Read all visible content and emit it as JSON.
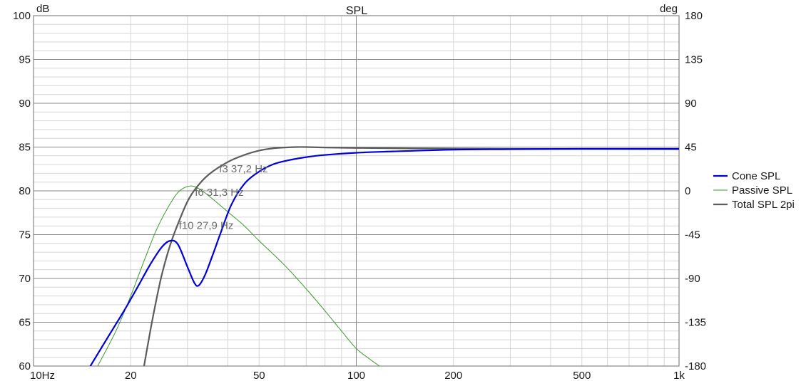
{
  "chart_data": {
    "type": "line",
    "title": "SPL",
    "ylabel_left": "dB",
    "ylabel_right": "deg",
    "x_scale": "log",
    "xlim": [
      10,
      1000
    ],
    "ylim": [
      60,
      100
    ],
    "ylim_right": [
      -180,
      180
    ],
    "x_ticks": [
      {
        "value": 10,
        "label": "10Hz"
      },
      {
        "value": 20,
        "label": "20"
      },
      {
        "value": 50,
        "label": "50"
      },
      {
        "value": 100,
        "label": "100"
      },
      {
        "value": 200,
        "label": "200"
      },
      {
        "value": 500,
        "label": "500"
      },
      {
        "value": 1000,
        "label": "1k"
      }
    ],
    "y_ticks_left": [
      100,
      95,
      90,
      85,
      80,
      75,
      70,
      65,
      60
    ],
    "y_ticks_right": [
      180,
      135,
      90,
      45,
      0,
      -45,
      -90,
      -135,
      -180
    ],
    "grid": true,
    "legend_position": "right",
    "series": [
      {
        "name": "Cone SPL",
        "color": "#0000dd",
        "x": [
          15,
          17,
          19,
          21,
          23,
          25,
          26.5,
          28,
          30,
          31.5,
          32.5,
          34,
          36,
          38,
          41,
          45,
          50,
          55,
          60,
          70,
          80,
          100,
          130,
          200,
          300,
          500,
          1000
        ],
        "y": [
          60,
          63.3,
          66.2,
          69,
          71.6,
          73.6,
          74.3,
          73.9,
          71.3,
          69.5,
          69.2,
          70.4,
          72.8,
          75.2,
          78.4,
          80.8,
          82.2,
          83.0,
          83.4,
          83.85,
          84.1,
          84.35,
          84.5,
          84.7,
          84.75,
          84.8,
          84.8
        ]
      },
      {
        "name": "Passive SPL",
        "color": "#3a9a2a",
        "x": [
          15.8,
          18,
          20,
          22,
          24,
          26,
          28,
          30,
          32,
          35,
          40,
          45,
          50,
          60,
          70,
          80,
          90,
          100,
          110,
          118
        ],
        "y": [
          60,
          64,
          68,
          72,
          75.5,
          78,
          79.8,
          80.5,
          80.4,
          79.4,
          77.6,
          76,
          74.3,
          71.5,
          68.8,
          66.3,
          64,
          62,
          60.8,
          60
        ]
      },
      {
        "name": "Total SPL 2pi",
        "color": "#5c5c5c",
        "x": [
          22,
          23,
          24,
          25,
          26.5,
          28,
          30,
          32,
          35,
          40,
          45,
          50,
          55,
          60,
          65,
          70,
          80,
          100,
          150,
          300,
          1000
        ],
        "y": [
          60,
          64,
          67.5,
          70.5,
          73.8,
          76.2,
          78.8,
          80.4,
          81.9,
          83.3,
          84.1,
          84.6,
          84.85,
          84.95,
          85,
          85,
          84.95,
          84.9,
          84.85,
          84.8,
          84.75
        ]
      }
    ],
    "annotations": [
      {
        "label": "f3 37,2 Hz",
        "x": 37.2
      },
      {
        "label": "f6 31,3 Hz",
        "x": 31.3
      },
      {
        "label": "f10 27,9 Hz",
        "x": 27.9
      }
    ]
  }
}
